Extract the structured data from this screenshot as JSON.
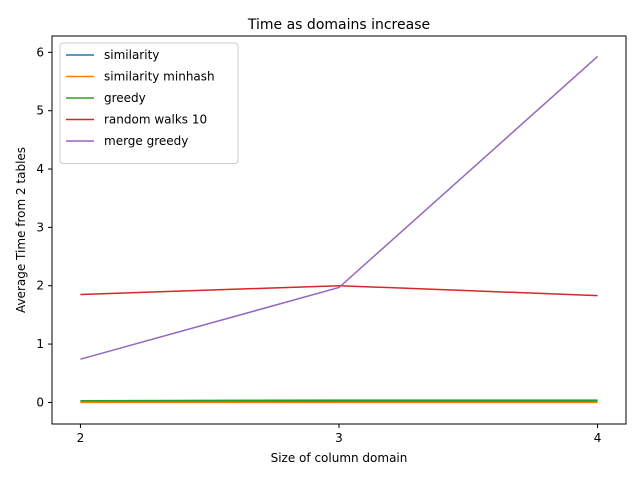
{
  "chart_data": {
    "type": "line",
    "title": "Time as domains increase",
    "xlabel": "Size of column domain",
    "ylabel": "Average Time from 2 tables",
    "x": [
      2,
      3,
      4
    ],
    "xticks": [
      "2",
      "3",
      "4"
    ],
    "yticks": [
      "0",
      "1",
      "2",
      "3",
      "4",
      "5",
      "6"
    ],
    "xlim": [
      1.89,
      4.11
    ],
    "ylim": [
      -0.37,
      6.28
    ],
    "grid": false,
    "legend_position": "top-left",
    "series": [
      {
        "name": "similarity",
        "color": "#1f77b4",
        "values": [
          0.02,
          0.02,
          0.02
        ]
      },
      {
        "name": "similarity minhash",
        "color": "#ff7f0e",
        "values": [
          0.0,
          0.0,
          0.0
        ]
      },
      {
        "name": "greedy",
        "color": "#2ca02c",
        "values": [
          0.03,
          0.04,
          0.04
        ]
      },
      {
        "name": "random walks 10",
        "color": "#d62728",
        "values": [
          1.85,
          2.0,
          1.83
        ]
      },
      {
        "name": "merge greedy",
        "color": "#9467bd",
        "values": [
          0.74,
          1.97,
          5.93
        ]
      }
    ]
  }
}
